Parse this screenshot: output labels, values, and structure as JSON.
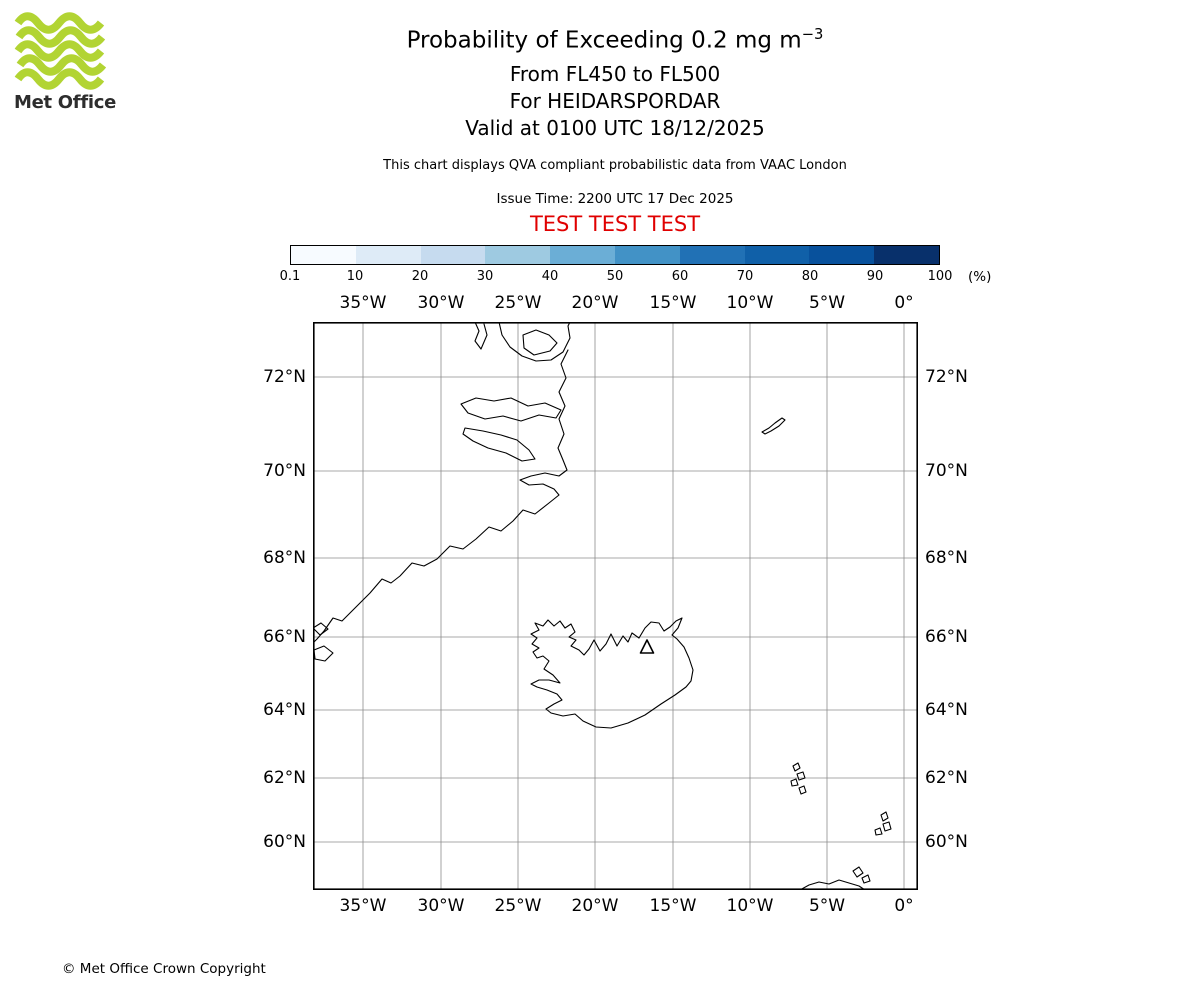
{
  "logo": {
    "brand": "Met Office"
  },
  "colors": {
    "logo_green": "#b2d433",
    "test_red": "#e00000",
    "grid_gray": "#8c8c8c"
  },
  "header": {
    "title_main": "Probability of Exceeding 0.2 mg m",
    "title_sup": "−3",
    "subtitle1": "From FL450 to FL500",
    "subtitle2": "For HEIDARSPORDAR",
    "subtitle3": "Valid at 0100 UTC 18/12/2025",
    "note": "This chart displays QVA compliant probabilistic data from VAAC London",
    "issue_time": "Issue Time: 2200 UTC 17 Dec 2025",
    "test_banner": "TEST TEST TEST"
  },
  "colorbar": {
    "unit": "(%)",
    "tick_labels": [
      "0.1",
      "10",
      "20",
      "30",
      "40",
      "50",
      "60",
      "70",
      "80",
      "90",
      "100"
    ],
    "segment_colors": [
      "#f7fbff",
      "#deebf7",
      "#c6dbef",
      "#9ecae1",
      "#6baed6",
      "#4292c6",
      "#2171b5",
      "#1060a8",
      "#08519c",
      "#08306b"
    ]
  },
  "map": {
    "lon_labels": [
      "35°W",
      "30°W",
      "25°W",
      "20°W",
      "15°W",
      "10°W",
      "5°W",
      "0°"
    ],
    "lat_labels": [
      "72°N",
      "70°N",
      "68°N",
      "66°N",
      "64°N",
      "62°N",
      "60°N"
    ]
  },
  "footer": {
    "copyright": "© Met Office Crown Copyright"
  },
  "chart_data": {
    "type": "map",
    "product": "Probability of Exceeding 0.2 mg m−3",
    "flight_levels": "FL450 to FL500",
    "volcano": "HEIDARSPORDAR",
    "valid_time": "0100 UTC 18/12/2025",
    "issue_time": "2200 UTC 17 Dec 2025",
    "source": "VAAC London",
    "probability_ticks_percent": [
      0.1,
      10,
      20,
      30,
      40,
      50,
      60,
      70,
      80,
      90,
      100
    ],
    "shaded_probability_regions": [],
    "lon_gridlines": [
      "35°W",
      "30°W",
      "25°W",
      "20°W",
      "15°W",
      "10°W",
      "5°W",
      "0°"
    ],
    "lat_gridlines": [
      "72°N",
      "70°N",
      "68°N",
      "66°N",
      "64°N",
      "62°N",
      "60°N"
    ]
  }
}
